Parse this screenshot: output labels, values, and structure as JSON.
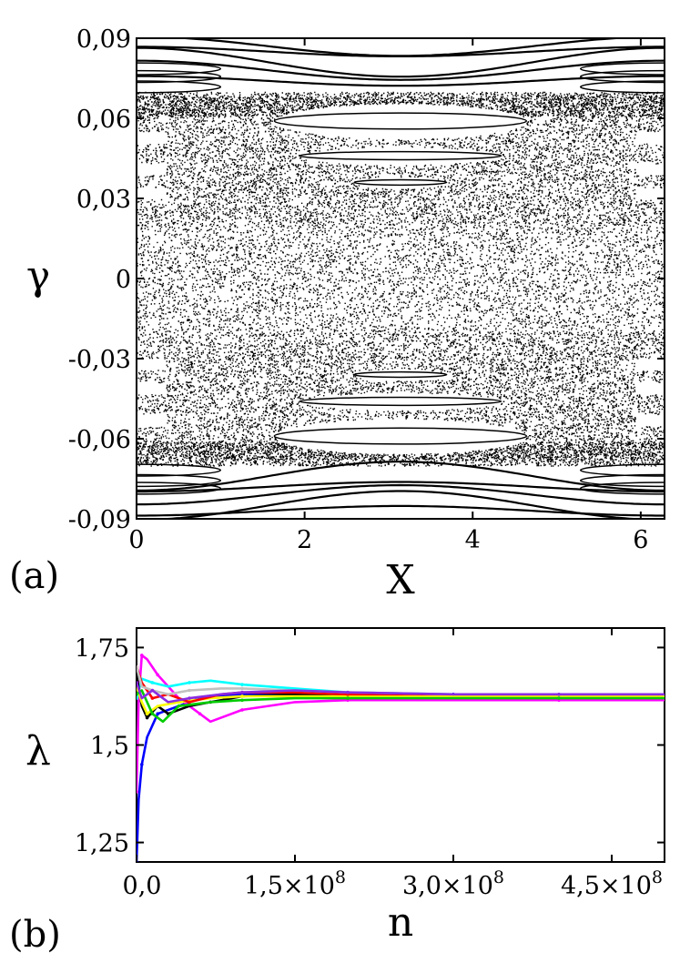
{
  "chart_data": [
    {
      "type": "scatter",
      "panel_label": "(a)",
      "xlabel": "X",
      "ylabel": "γ",
      "xlim": [
        0,
        6.283
      ],
      "ylim": [
        -0.09,
        0.09
      ],
      "x_ticks": [
        0,
        2,
        4,
        6
      ],
      "x_tick_labels": [
        "0",
        "2",
        "4",
        "6"
      ],
      "y_ticks": [
        0.09,
        0.06,
        0.03,
        0,
        -0.03,
        -0.06,
        -0.09
      ],
      "y_tick_labels": [
        "0,09",
        "0,06",
        "0,03",
        "0",
        "-0,03",
        "-0,06",
        "-0,09"
      ],
      "point_color": "#000000",
      "description_of_structures": {
        "chaotic_sea_gamma_range": [
          -0.068,
          0.068
        ],
        "invariant_curve_bands_gamma": [
          0.074,
          0.078,
          0.081,
          0.085,
          0.087,
          -0.074,
          -0.078,
          -0.081,
          -0.085,
          -0.087
        ],
        "central_islands": [
          {
            "x": 3.14,
            "gamma": 0.059,
            "half_width_x": 1.5,
            "half_height": 0.003
          },
          {
            "x": 3.14,
            "gamma": 0.046,
            "half_width_x": 1.2,
            "half_height": 0.0015
          },
          {
            "x": 3.14,
            "gamma": 0.036,
            "half_width_x": 0.55,
            "half_height": 0.001
          },
          {
            "x": 3.14,
            "gamma": -0.036,
            "half_width_x": 0.55,
            "half_height": 0.001
          },
          {
            "x": 3.14,
            "gamma": -0.046,
            "half_width_x": 1.2,
            "half_height": 0.0015
          },
          {
            "x": 3.14,
            "gamma": -0.059,
            "half_width_x": 1.5,
            "half_height": 0.003
          }
        ],
        "edge_islands_gamma": [
          0.078,
          0.053,
          0.041,
          0.032,
          -0.032,
          -0.041,
          -0.053,
          -0.078
        ]
      }
    },
    {
      "type": "line",
      "panel_label": "(b)",
      "xlabel": "n",
      "ylabel": "λ",
      "xlim": [
        0,
        500000000
      ],
      "ylim": [
        1.2,
        1.8
      ],
      "x_ticks": [
        0,
        150000000,
        300000000,
        450000000
      ],
      "x_tick_labels": [
        {
          "mantissa": "0,0",
          "exponent": ""
        },
        {
          "mantissa": "1,5×10",
          "exponent": "8"
        },
        {
          "mantissa": "3,0×10",
          "exponent": "8"
        },
        {
          "mantissa": "4,5×10",
          "exponent": "8"
        }
      ],
      "y_ticks": [
        1.75,
        1.5,
        1.25
      ],
      "y_tick_labels": [
        "1,75",
        "1,5",
        "1,25"
      ],
      "series": [
        {
          "color": "#0000ff",
          "x": [
            0,
            2000000,
            5000000,
            10000000,
            20000000,
            40000000,
            60000000,
            100000000,
            150000000,
            200000000,
            300000000,
            400000000,
            500000000
          ],
          "values": [
            1.2,
            1.36,
            1.45,
            1.52,
            1.58,
            1.6,
            1.62,
            1.63,
            1.635,
            1.63,
            1.63,
            1.625,
            1.625
          ]
        },
        {
          "color": "#ff00ff",
          "x": [
            0,
            2000000,
            5000000,
            10000000,
            20000000,
            40000000,
            60000000,
            70000000,
            100000000,
            150000000,
            200000000,
            300000000,
            400000000,
            500000000
          ],
          "values": [
            1.38,
            1.62,
            1.73,
            1.72,
            1.68,
            1.62,
            1.58,
            1.56,
            1.59,
            1.61,
            1.615,
            1.615,
            1.615,
            1.615
          ]
        },
        {
          "color": "#00ffff",
          "x": [
            0,
            5000000,
            15000000,
            30000000,
            50000000,
            70000000,
            100000000,
            150000000,
            200000000,
            300000000,
            400000000,
            500000000
          ],
          "values": [
            1.62,
            1.67,
            1.66,
            1.65,
            1.66,
            1.665,
            1.655,
            1.645,
            1.635,
            1.63,
            1.63,
            1.63
          ]
        },
        {
          "color": "#000000",
          "x": [
            0,
            5000000,
            10000000,
            20000000,
            30000000,
            50000000,
            70000000,
            100000000,
            150000000,
            200000000,
            300000000,
            400000000,
            500000000
          ],
          "values": [
            1.68,
            1.6,
            1.57,
            1.6,
            1.58,
            1.6,
            1.61,
            1.625,
            1.63,
            1.625,
            1.625,
            1.625,
            1.625
          ]
        },
        {
          "color": "#ffff00",
          "x": [
            0,
            5000000,
            10000000,
            20000000,
            40000000,
            70000000,
            100000000,
            150000000,
            200000000,
            300000000,
            400000000,
            500000000
          ],
          "values": [
            1.65,
            1.61,
            1.58,
            1.6,
            1.61,
            1.62,
            1.625,
            1.625,
            1.625,
            1.625,
            1.625,
            1.625
          ]
        },
        {
          "color": "#00cc00",
          "x": [
            0,
            5000000,
            15000000,
            25000000,
            40000000,
            70000000,
            100000000,
            150000000,
            200000000,
            300000000,
            400000000,
            500000000
          ],
          "values": [
            1.63,
            1.64,
            1.58,
            1.56,
            1.6,
            1.61,
            1.615,
            1.62,
            1.62,
            1.62,
            1.62,
            1.62
          ]
        },
        {
          "color": "#ff0000",
          "x": [
            0,
            5000000,
            15000000,
            30000000,
            50000000,
            80000000,
            100000000,
            150000000,
            200000000,
            300000000,
            400000000,
            500000000
          ],
          "values": [
            1.7,
            1.66,
            1.62,
            1.63,
            1.61,
            1.63,
            1.635,
            1.635,
            1.63,
            1.63,
            1.63,
            1.63
          ]
        },
        {
          "color": "#c0c0c0",
          "x": [
            0,
            5000000,
            15000000,
            30000000,
            50000000,
            80000000,
            100000000,
            150000000,
            200000000,
            300000000,
            400000000,
            500000000
          ],
          "values": [
            1.7,
            1.65,
            1.64,
            1.63,
            1.64,
            1.645,
            1.645,
            1.64,
            1.635,
            1.63,
            1.63,
            1.63
          ]
        },
        {
          "color": "#8a2be2",
          "x": [
            0,
            5000000,
            15000000,
            30000000,
            50000000,
            80000000,
            100000000,
            150000000,
            200000000,
            300000000,
            400000000,
            500000000
          ],
          "values": [
            1.66,
            1.62,
            1.64,
            1.61,
            1.62,
            1.63,
            1.635,
            1.64,
            1.635,
            1.63,
            1.63,
            1.63
          ]
        }
      ]
    }
  ]
}
